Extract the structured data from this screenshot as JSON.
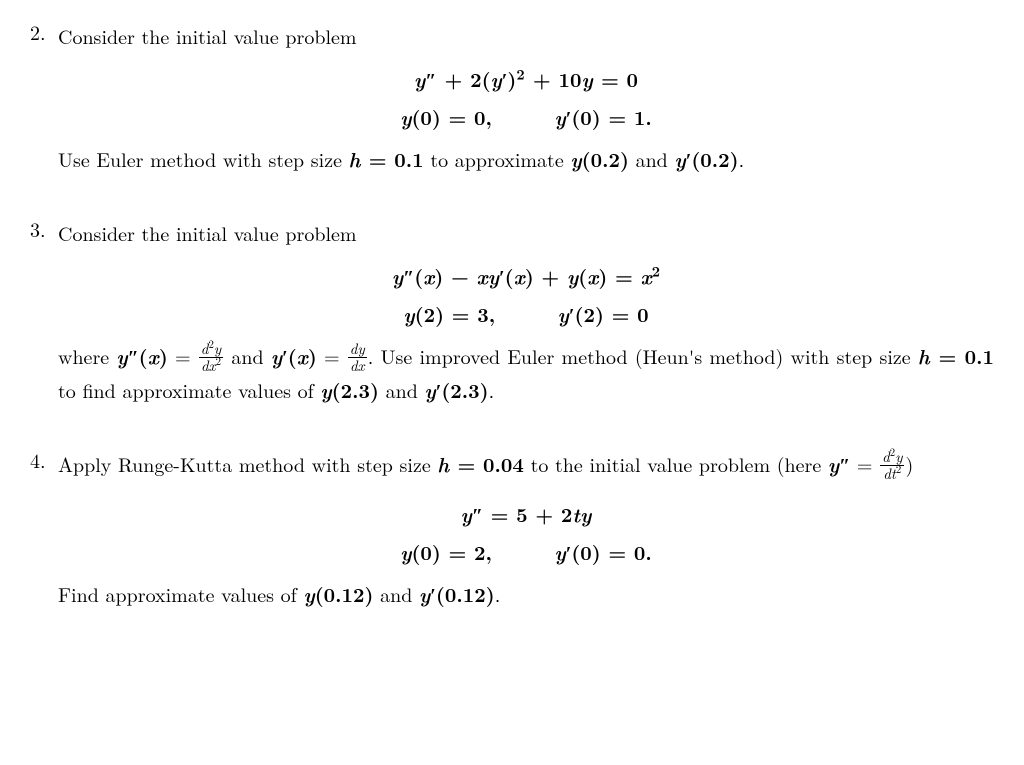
{
  "problems": [
    {
      "number": "2.",
      "intro": "Consider the initial value problem",
      "eq1": "y″ + 2(y′)² + 10y = 0",
      "eq2a": "y(0) = 0,",
      "eq2b": "y′(0) = 1.",
      "tail_pre": "Use Euler method with step size ",
      "tail_h": "h = 0.1",
      "tail_mid": " to approximate ",
      "tail_v1": "y(0.2)",
      "tail_and": " and ",
      "tail_v2": "y′(0.2)",
      "tail_end": "."
    },
    {
      "number": "3.",
      "intro": "Consider the initial value problem",
      "eq1": "y″(x) − xy′(x) + y(x) = x²",
      "eq2a": "y(2) = 3,",
      "eq2b": "y′(2) = 0",
      "where_pre": "where ",
      "where_ypp": "y″(x)",
      "where_eq1": " = ",
      "frac1_num": "d²y",
      "frac1_den": "dx²",
      "where_and": " and ",
      "where_yp": "y′(x)",
      "where_eq2": " = ",
      "frac2_num": "dy",
      "frac2_den": "dx",
      "where_post": ". Use improved Euler method (Heun's method) with step size ",
      "where_h": "h = 0.1",
      "where_mid": " to find approximate values of ",
      "where_v1": "y(2.3)",
      "where_and2": " and ",
      "where_v2": "y′(2.3)",
      "where_end": "."
    },
    {
      "number": "4.",
      "intro_pre": "Apply Runge-Kutta method with step size ",
      "intro_h": "h = 0.04",
      "intro_mid": " to the initial value problem (here ",
      "intro_ypp": "y″",
      "intro_eq": " = ",
      "frac_num": "d²y",
      "frac_den": "dt²",
      "intro_post": ")",
      "eq1": "y″ = 5 + 2ty",
      "eq2a": "y(0) = 2,",
      "eq2b": "y′(0) = 0.",
      "tail_pre": "Find approximate values of ",
      "tail_v1": "y(0.12)",
      "tail_and": " and ",
      "tail_v2": "y′(0.12)",
      "tail_end": "."
    }
  ]
}
